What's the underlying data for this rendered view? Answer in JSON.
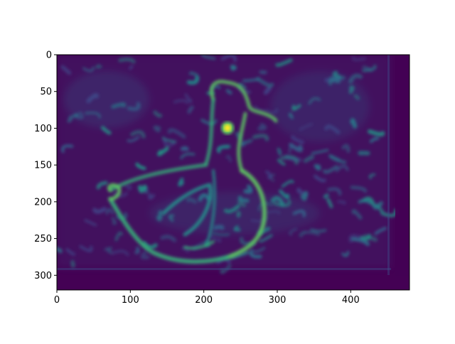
{
  "chart_data": {
    "type": "heatmap",
    "title": "",
    "xlabel": "",
    "ylabel": "",
    "colormap": "viridis",
    "image_shape": [
      320,
      480
    ],
    "x_range": [
      0,
      480
    ],
    "y_range": [
      320,
      0
    ],
    "x_ticks": [
      0,
      100,
      200,
      300,
      400
    ],
    "y_ticks": [
      0,
      50,
      100,
      150,
      200,
      250,
      300
    ],
    "grid": false,
    "content_description": "Edge-magnitude map of a duck/goose photograph: bright outlines on a dark purple background with textured ripples",
    "colors": {
      "background": "#440154",
      "mid_dark": "#3b528b",
      "mid": "#21918c",
      "mid_light": "#5ec962",
      "bright": "#fde725"
    }
  }
}
